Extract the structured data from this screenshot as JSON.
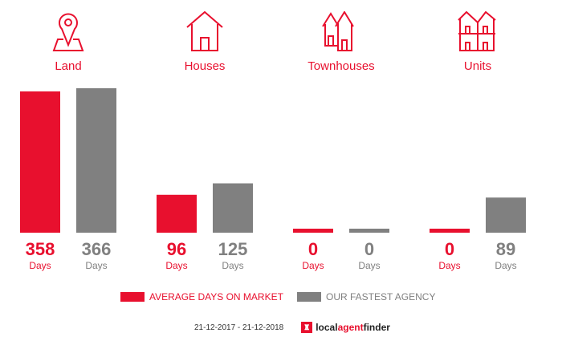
{
  "chart_data": {
    "type": "bar",
    "categories": [
      "Land",
      "Houses",
      "Townhouses",
      "Units"
    ],
    "series": [
      {
        "name": "AVERAGE DAYS ON MARKET",
        "color": "#e8102e",
        "values": [
          358,
          96,
          0,
          0
        ]
      },
      {
        "name": "OUR FASTEST AGENCY",
        "color": "#808080",
        "values": [
          366,
          125,
          0,
          89
        ]
      }
    ],
    "unit_label": "Days",
    "icons": [
      "map-pin-icon",
      "house-icon",
      "townhouse-icon",
      "units-icon"
    ]
  },
  "footer": {
    "date_range": "21-12-2017 - 21-12-2018",
    "logo": {
      "part1": "local",
      "part2": "agent",
      "part3": "finder"
    }
  }
}
